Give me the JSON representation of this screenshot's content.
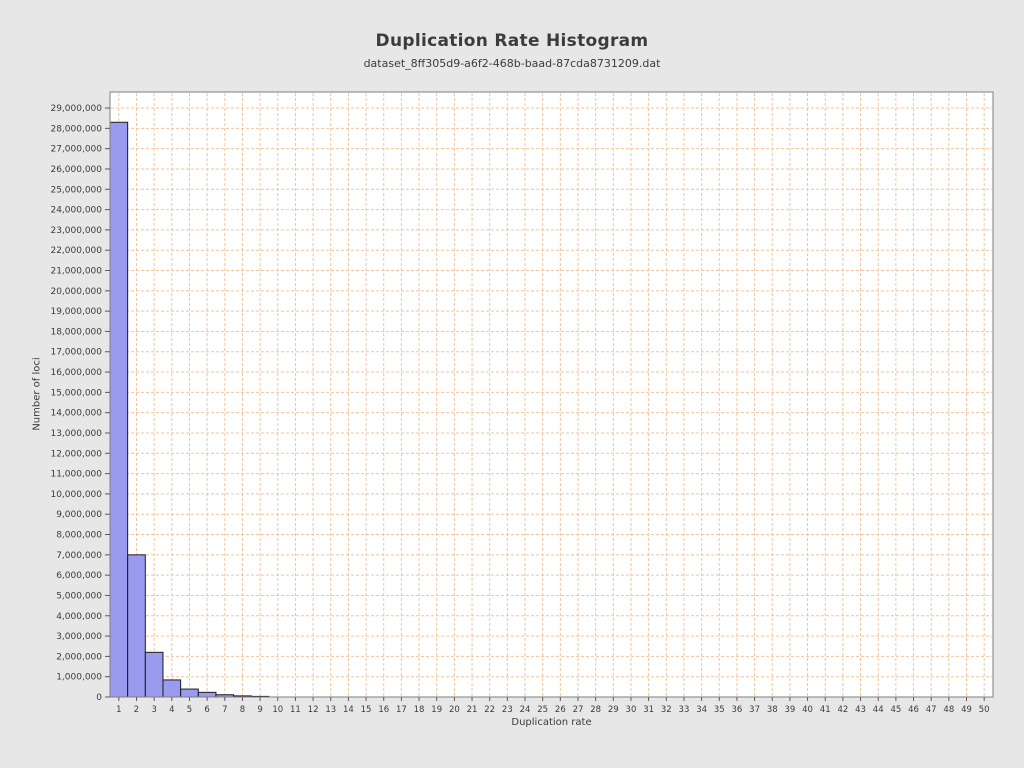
{
  "page": {
    "background_color": "#e7e7e7"
  },
  "chart_data": {
    "type": "bar",
    "title": "Duplication Rate Histogram",
    "subtitle": "dataset_8ff305d9-a6f2-468b-baad-87cda8731209.dat",
    "xlabel": "Duplication rate",
    "ylabel": "Number of loci",
    "categories": [
      1,
      2,
      3,
      4,
      5,
      6,
      7,
      8,
      9,
      10,
      11,
      12,
      13,
      14,
      15,
      16,
      17,
      18,
      19,
      20,
      21,
      22,
      23,
      24,
      25,
      26,
      27,
      28,
      29,
      30,
      31,
      32,
      33,
      34,
      35,
      36,
      37,
      38,
      39,
      40,
      41,
      42,
      43,
      44,
      45,
      46,
      47,
      48,
      49,
      50
    ],
    "values": [
      28300000,
      7000000,
      2200000,
      840000,
      390000,
      230000,
      110000,
      55000,
      30000,
      0,
      0,
      0,
      0,
      0,
      0,
      0,
      0,
      0,
      0,
      0,
      0,
      0,
      0,
      0,
      0,
      0,
      0,
      0,
      0,
      0,
      0,
      0,
      0,
      0,
      0,
      0,
      0,
      0,
      0,
      0,
      0,
      0,
      0,
      0,
      0,
      0,
      0,
      0,
      0,
      0
    ],
    "xlim": [
      0.5,
      50.5
    ],
    "ylim": [
      0,
      29790000
    ],
    "ytick_interval": 1000000,
    "ytick_max": 29000000,
    "grid": true,
    "legend_position": "none",
    "colors": {
      "bar_fill": "#9a9aee",
      "bar_border": "#1d1d1d",
      "grid_line": "#f2c59e",
      "plot_border": "#7f7f7f",
      "tick_line": "#5a5a5a",
      "plot_background": "#ffffff",
      "text": "#3c3c3c"
    }
  }
}
